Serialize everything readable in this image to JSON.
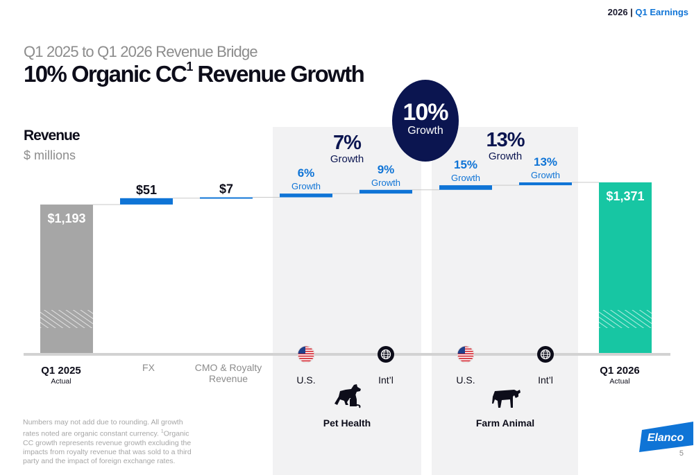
{
  "header": {
    "year": "2026",
    "separator": " | ",
    "section": "Q1 Earnings"
  },
  "subtitle": "Q1 2025 to Q1 2026 Revenue Bridge",
  "title": {
    "main": "10% Organic CC",
    "sup": "1",
    "rest": " Revenue Growth"
  },
  "revenue_label": "Revenue",
  "revenue_units": "$ millions",
  "total_growth": {
    "value": "10%",
    "label": "Growth"
  },
  "segments": [
    {
      "name": "Pet Health",
      "growth_value": "7%",
      "growth_label": "Growth",
      "icon": "dog-and-cat-icon"
    },
    {
      "name": "Farm Animal",
      "growth_value": "13%",
      "growth_label": "Growth",
      "icon": "cow-icon"
    }
  ],
  "chart_data": {
    "type": "bar",
    "subtype": "waterfall",
    "categories": [
      {
        "label": "Q1 2025",
        "sublabel": "Actual",
        "style": "total-bold"
      },
      {
        "label": "FX",
        "sublabel": "",
        "style": "light"
      },
      {
        "label": "CMO & Royalty",
        "sublabel": "Revenue",
        "style": "light"
      },
      {
        "label": "U.S.",
        "sublabel": "",
        "style": "dark",
        "icon": "us-flag-icon"
      },
      {
        "label": "Int’l",
        "sublabel": "",
        "style": "dark",
        "icon": "globe-icon"
      },
      {
        "label": "U.S.",
        "sublabel": "",
        "style": "dark",
        "icon": "us-flag-icon"
      },
      {
        "label": "Int’l",
        "sublabel": "",
        "style": "dark",
        "icon": "globe-icon"
      },
      {
        "label": "Q1 2026",
        "sublabel": "Actual",
        "style": "total-bold"
      }
    ],
    "bars": [
      {
        "kind": "total",
        "value": 1193,
        "label": "$1,193",
        "color": "#a6a6a6"
      },
      {
        "kind": "delta",
        "value": 51,
        "label": "$51",
        "color": "#0f74d6"
      },
      {
        "kind": "delta",
        "value": 7,
        "label": "$7",
        "color": "#0f74d6"
      },
      {
        "kind": "delta",
        "value": 30,
        "growth_pct": "6%",
        "growth_label": "Growth",
        "color": "#0f74d6"
      },
      {
        "kind": "delta",
        "value": 30,
        "growth_pct": "9%",
        "growth_label": "Growth",
        "color": "#0f74d6"
      },
      {
        "kind": "delta",
        "value": 37,
        "growth_pct": "15%",
        "growth_label": "Growth",
        "color": "#0f74d6"
      },
      {
        "kind": "delta",
        "value": 23,
        "growth_pct": "13%",
        "growth_label": "Growth",
        "color": "#0f74d6"
      },
      {
        "kind": "total",
        "value": 1371,
        "label": "$1,371",
        "color": "#17c6a3"
      }
    ]
  },
  "colors": {
    "blue": "#0f74d6",
    "navy": "#0b1550",
    "gray_bar": "#a6a6a6",
    "teal": "#17c6a3",
    "panel": "#f2f2f3"
  },
  "footnote": {
    "part1": "Numbers may not add due to rounding. All growth rates noted are organic constant currency. ",
    "sup": "1",
    "part2": "Organic CC growth represents revenue growth excluding the impacts from royalty revenue that was sold to a third party and the impact of foreign exchange rates."
  },
  "logo": {
    "text": "Elanco"
  },
  "page_number": "5"
}
